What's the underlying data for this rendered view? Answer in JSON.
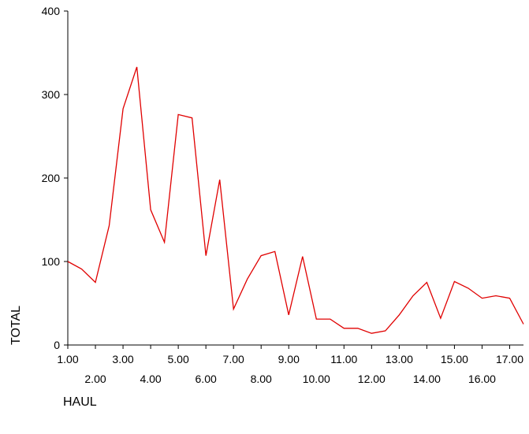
{
  "chart_data": {
    "type": "line",
    "xlabel": "HAUL",
    "ylabel": "TOTAL",
    "xlim": [
      1,
      17.5
    ],
    "ylim": [
      0,
      400
    ],
    "y_ticks": [
      "0",
      "100",
      "200",
      "300",
      "400"
    ],
    "x_ticks_row1": [
      "1.00",
      "3.00",
      "5.00",
      "7.00",
      "9.00",
      "11.00",
      "13.00",
      "15.00",
      "17.00"
    ],
    "x_ticks_row2": [
      "2.00",
      "4.00",
      "6.00",
      "8.00",
      "10.00",
      "12.00",
      "14.00",
      "16.00"
    ],
    "grid": false,
    "series": [
      {
        "color": "#e00000",
        "x": [
          1,
          1.5,
          2,
          2.5,
          3,
          3.5,
          4,
          4.5,
          5,
          5.5,
          6,
          6.5,
          7,
          7.5,
          8,
          8.5,
          9,
          9.5,
          10,
          10.5,
          11,
          11.5,
          12,
          12.5,
          13,
          13.5,
          14,
          14.5,
          15,
          15.5,
          16,
          16.5,
          17,
          17.5
        ],
        "values": [
          100,
          91,
          75,
          143,
          283,
          333,
          162,
          123,
          276,
          272,
          107,
          198,
          43,
          79,
          107,
          112,
          36,
          106,
          31,
          31,
          20,
          20,
          14,
          17,
          36,
          59,
          75,
          32,
          76,
          68,
          56,
          59,
          56,
          25
        ]
      }
    ]
  }
}
